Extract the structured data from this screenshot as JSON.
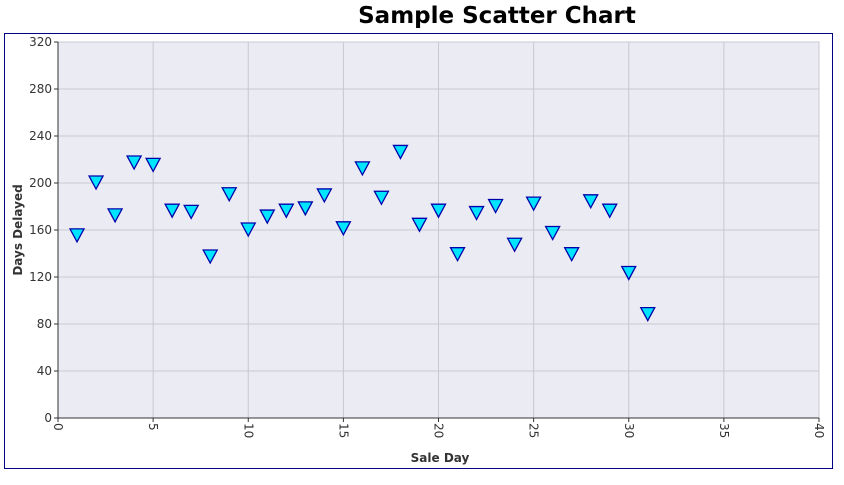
{
  "chart_data": {
    "type": "scatter",
    "title": "Sample Scatter Chart",
    "xlabel": "Sale Day",
    "ylabel": "Days Delayed",
    "xlim": [
      0,
      40
    ],
    "ylim": [
      0,
      320
    ],
    "x_ticks": [
      0,
      5,
      10,
      15,
      20,
      25,
      30,
      35,
      40
    ],
    "y_ticks": [
      0,
      40,
      80,
      120,
      160,
      200,
      240,
      280,
      320
    ],
    "grid": true,
    "marker": "inverted-triangle",
    "colors": {
      "marker_fill": "#00e5ff",
      "marker_stroke": "#0000aa",
      "plot_bg": "#ebebf3",
      "grid": "#c8c8d2",
      "frame": "#000080"
    },
    "series": [
      {
        "x": [
          1,
          2,
          3,
          4,
          5,
          6,
          7,
          8,
          9,
          10,
          11,
          12,
          13,
          14,
          15,
          16,
          17,
          18,
          19,
          20,
          21,
          22,
          23,
          24,
          25,
          26,
          27,
          28,
          29,
          30,
          31
        ],
        "y": [
          155,
          200,
          172,
          217,
          215,
          176,
          175,
          137,
          190,
          160,
          171,
          176,
          178,
          189,
          161,
          212,
          187,
          226,
          164,
          176,
          139,
          174,
          180,
          147,
          182,
          157,
          139,
          184,
          176,
          123,
          88
        ]
      }
    ]
  }
}
